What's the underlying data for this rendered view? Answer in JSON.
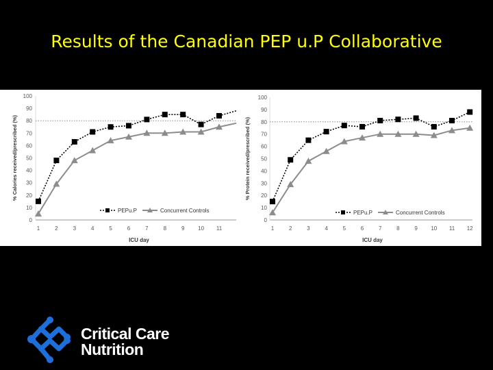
{
  "slide": {
    "title": "Results of the Canadian PEP u.P Collaborative"
  },
  "logo": {
    "line1": "Critical Care",
    "line2": "Nutrition",
    "color": "#1e6fd9"
  },
  "chart_data": [
    {
      "type": "line",
      "ylabel": "% Calories received/prescribed (%)",
      "xlabel": "ICU day",
      "x": [
        1,
        2,
        3,
        4,
        5,
        6,
        7,
        8,
        9,
        10,
        11
      ],
      "x_end": 12,
      "ylim": [
        0,
        100
      ],
      "yticks": [
        0,
        10,
        20,
        30,
        40,
        50,
        60,
        70,
        80,
        90,
        100
      ],
      "reference_line": 80,
      "legend_position": "bottom-center",
      "series": [
        {
          "name": "PEPu.P",
          "marker": "square",
          "style": "dotted",
          "color": "#000000",
          "values": [
            15,
            48,
            63,
            71,
            75,
            76,
            81,
            85,
            85,
            77,
            84
          ],
          "line_end": 88
        },
        {
          "name": "Concurrent Controls",
          "marker": "triangle",
          "style": "solid",
          "color": "#8c8c8c",
          "values": [
            5,
            29,
            48,
            56,
            64,
            67,
            70,
            70,
            71,
            71,
            75
          ],
          "line_end": 78
        }
      ]
    },
    {
      "type": "line",
      "ylabel": "% Protein received/prescribed (%)",
      "xlabel": "ICU day",
      "x": [
        1,
        2,
        3,
        4,
        5,
        6,
        7,
        8,
        9,
        10,
        11,
        12
      ],
      "ylim": [
        0,
        100
      ],
      "yticks": [
        0,
        10,
        20,
        30,
        40,
        50,
        60,
        70,
        80,
        90,
        100
      ],
      "reference_line": 80,
      "legend_position": "bottom-center",
      "series": [
        {
          "name": "PEPu.P",
          "marker": "square",
          "style": "dotted",
          "color": "#000000",
          "values": [
            15,
            49,
            65,
            72,
            77,
            76,
            81,
            82,
            83,
            76,
            81,
            88
          ]
        },
        {
          "name": "Concurrent Controls",
          "marker": "triangle",
          "style": "solid",
          "color": "#8c8c8c",
          "values": [
            6,
            29,
            48,
            56,
            64,
            67,
            70,
            70,
            70,
            69,
            73,
            75
          ]
        }
      ]
    }
  ]
}
